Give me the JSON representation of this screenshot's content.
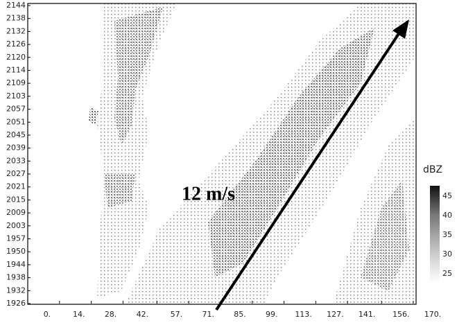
{
  "chart_data": {
    "type": "time-distance",
    "annotation": "12 m/s",
    "colorbar_label": "dBZ",
    "colorbar_ticks": [
      45,
      40,
      35,
      30,
      25
    ],
    "y_labels": [
      "1926",
      "1932",
      "1938",
      "1944",
      "1950",
      "1957",
      "2003",
      "2009",
      "2015",
      "2021",
      "2027",
      "2033",
      "2039",
      "2045",
      "2051",
      "2057",
      "2103",
      "2109",
      "2114",
      "2120",
      "2126",
      "2132",
      "2138",
      "2144"
    ],
    "xlim": [
      0,
      170
    ],
    "xticks": [
      {
        "value": 0,
        "label": "0."
      },
      {
        "value": 14,
        "label": "14."
      },
      {
        "value": 28,
        "label": "28."
      },
      {
        "value": 42,
        "label": "42."
      },
      {
        "value": 57,
        "label": "57."
      },
      {
        "value": 71,
        "label": "71."
      },
      {
        "value": 85,
        "label": "85."
      },
      {
        "value": 99,
        "label": "99."
      },
      {
        "value": 113,
        "label": "113."
      },
      {
        "value": 127,
        "label": "127."
      },
      {
        "value": 141,
        "label": "141."
      },
      {
        "value": 156,
        "label": "156."
      },
      {
        "value": 170,
        "label": "170."
      }
    ]
  }
}
